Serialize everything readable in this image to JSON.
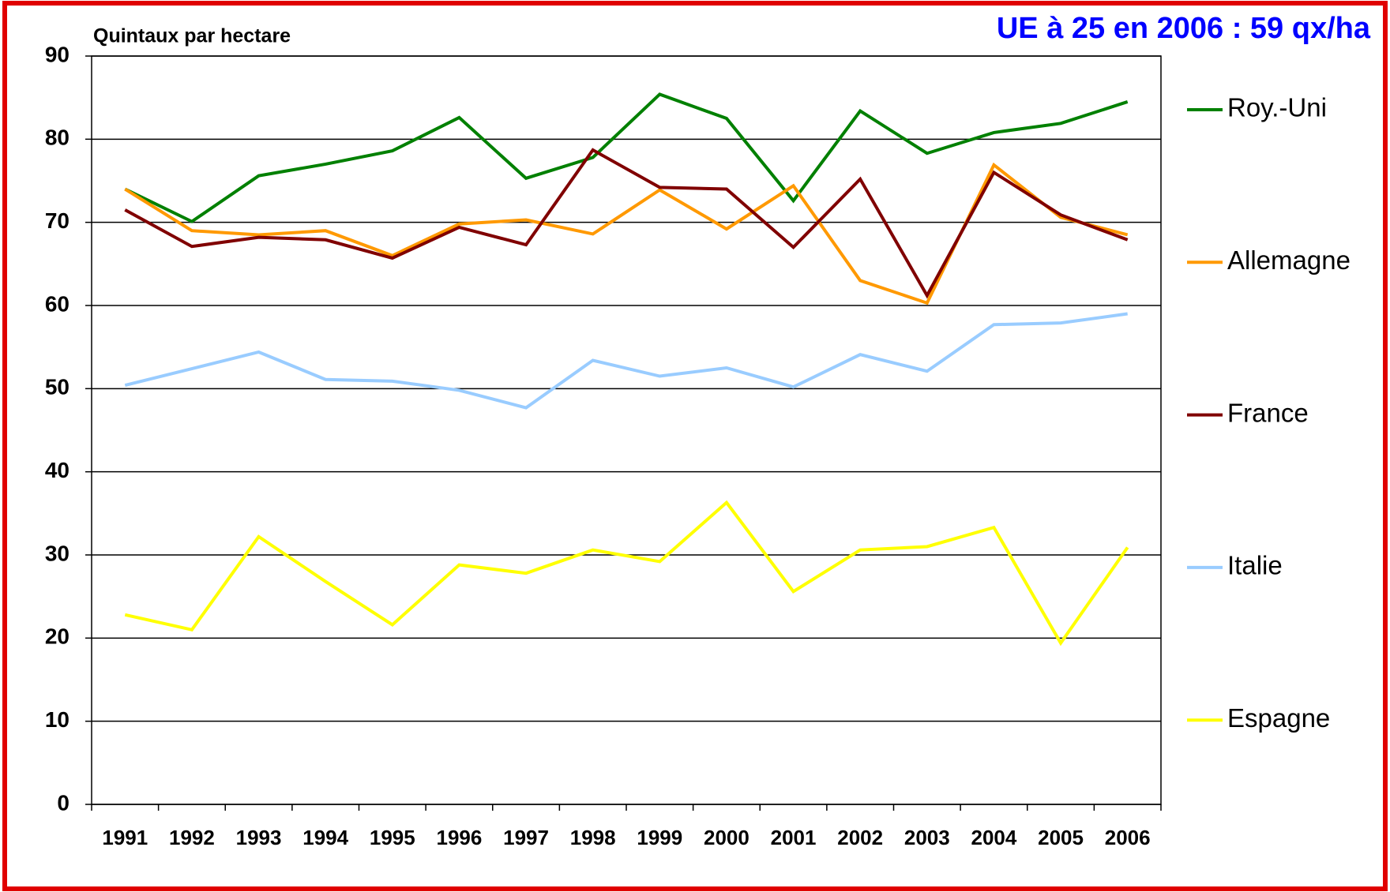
{
  "chart_data": {
    "type": "line",
    "title": "UE à 25 en 2006 : 59 qx/ha",
    "y_label": "Quintaux par hectare",
    "categories": [
      "1991",
      "1992",
      "1993",
      "1994",
      "1995",
      "1996",
      "1997",
      "1998",
      "1999",
      "2000",
      "2001",
      "2002",
      "2003",
      "2004",
      "2005",
      "2006"
    ],
    "series": [
      {
        "name": "Roy.-Uni",
        "color": "#008000",
        "values": [
          74.0,
          70.1,
          75.6,
          77.0,
          78.6,
          82.6,
          75.3,
          77.8,
          85.4,
          82.5,
          72.6,
          83.4,
          78.3,
          80.8,
          81.9,
          84.5
        ]
      },
      {
        "name": "Allemagne",
        "color": "#ff9900",
        "values": [
          74.0,
          69.0,
          68.5,
          69.0,
          66.0,
          69.8,
          70.3,
          68.6,
          73.9,
          69.2,
          74.4,
          63.0,
          60.3,
          76.9,
          70.6,
          68.5
        ]
      },
      {
        "name": "France",
        "color": "#800000",
        "values": [
          71.5,
          67.1,
          68.2,
          67.9,
          65.7,
          69.4,
          67.3,
          78.7,
          74.2,
          74.0,
          67.0,
          75.2,
          61.2,
          76.0,
          70.9,
          67.9
        ]
      },
      {
        "name": "Italie",
        "color": "#99ccff",
        "values": [
          50.4,
          52.4,
          54.4,
          51.1,
          50.9,
          49.8,
          47.7,
          53.4,
          51.5,
          52.5,
          50.2,
          54.1,
          52.1,
          57.7,
          57.9,
          59.0
        ]
      },
      {
        "name": "Espagne",
        "color": "#ffff00",
        "values": [
          22.8,
          21.0,
          32.2,
          26.8,
          21.6,
          28.8,
          27.8,
          30.6,
          29.2,
          36.3,
          25.6,
          30.6,
          31.0,
          33.3,
          19.4,
          30.9
        ]
      }
    ],
    "ylim": [
      0,
      90
    ],
    "yticks": [
      0,
      10,
      20,
      30,
      40,
      50,
      60,
      70,
      80,
      90
    ],
    "grid": true,
    "legend": "right"
  }
}
